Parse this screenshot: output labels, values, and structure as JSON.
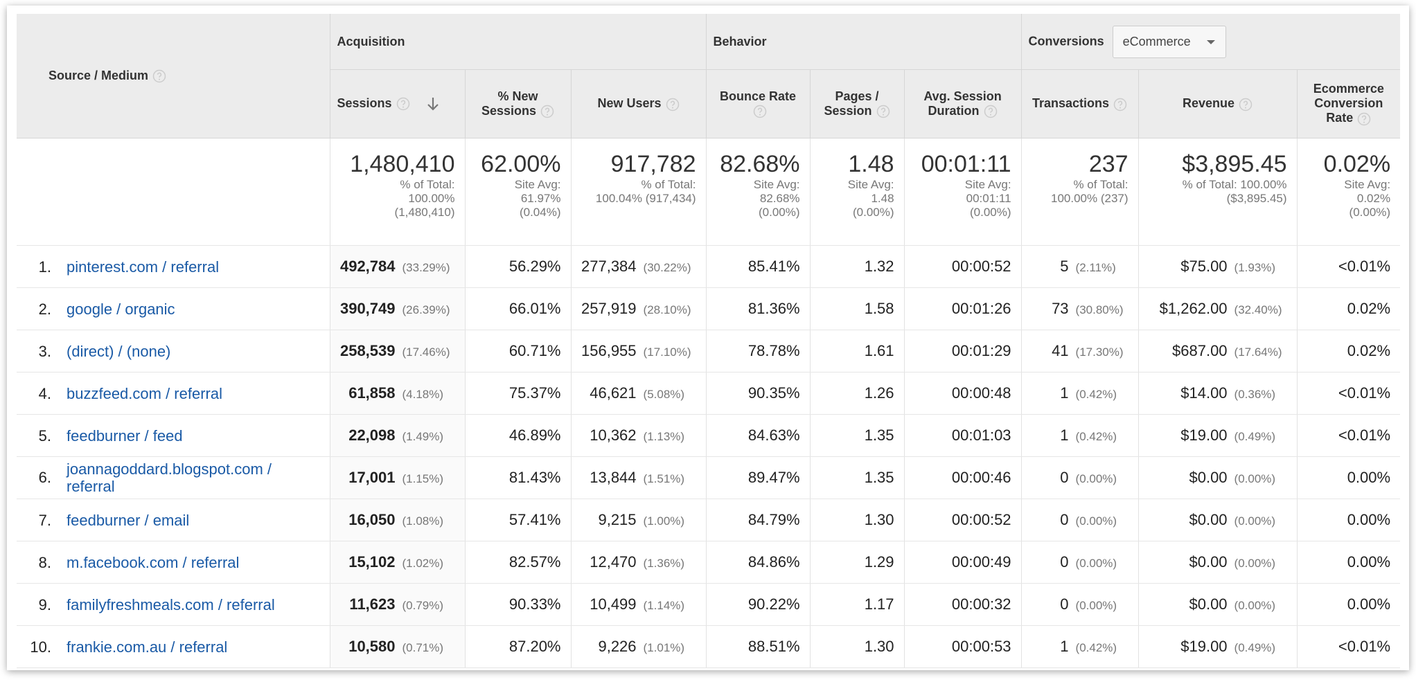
{
  "header": {
    "source_medium": "Source / Medium",
    "acquisition": "Acquisition",
    "behavior": "Behavior",
    "conversions": "Conversions",
    "conversion_select": "eCommerce"
  },
  "columns": [
    "Sessions",
    "% New Sessions",
    "New Users",
    "Bounce Rate",
    "Pages / Session",
    "Avg. Session Duration",
    "Transactions",
    "Revenue",
    "Ecommerce Conversion Rate"
  ],
  "totals": [
    {
      "value": "1,480,410",
      "note": [
        "% of Total:",
        "100.00%",
        "(1,480,410)"
      ]
    },
    {
      "value": "62.00%",
      "note": [
        "Site Avg:",
        "61.97%",
        "(0.04%)"
      ]
    },
    {
      "value": "917,782",
      "note": [
        "% of Total:",
        "100.04% (917,434)"
      ]
    },
    {
      "value": "82.68%",
      "note": [
        "Site Avg:",
        "82.68%",
        "(0.00%)"
      ]
    },
    {
      "value": "1.48",
      "note": [
        "Site Avg:",
        "1.48",
        "(0.00%)"
      ]
    },
    {
      "value": "00:01:11",
      "note": [
        "Site Avg:",
        "00:01:11",
        "(0.00%)"
      ]
    },
    {
      "value": "237",
      "note": [
        "% of Total:",
        "100.00% (237)"
      ]
    },
    {
      "value": "$3,895.45",
      "note": [
        "% of Total: 100.00%",
        "($3,895.45)"
      ]
    },
    {
      "value": "0.02%",
      "note": [
        "Site Avg:",
        "0.02%",
        "(0.00%)"
      ]
    }
  ],
  "rows": [
    {
      "rank": "1.",
      "source": "pinterest.com / referral",
      "cells": [
        {
          "value": "492,784",
          "share": "(33.29%)"
        },
        {
          "value": "56.29%"
        },
        {
          "value": "277,384",
          "share": "(30.22%)"
        },
        {
          "value": "85.41%"
        },
        {
          "value": "1.32"
        },
        {
          "value": "00:00:52"
        },
        {
          "value": "5",
          "share": "(2.11%)"
        },
        {
          "value": "$75.00",
          "share": "(1.93%)"
        },
        {
          "value": "<0.01%"
        }
      ]
    },
    {
      "rank": "2.",
      "source": "google / organic",
      "cells": [
        {
          "value": "390,749",
          "share": "(26.39%)"
        },
        {
          "value": "66.01%"
        },
        {
          "value": "257,919",
          "share": "(28.10%)"
        },
        {
          "value": "81.36%"
        },
        {
          "value": "1.58"
        },
        {
          "value": "00:01:26"
        },
        {
          "value": "73",
          "share": "(30.80%)"
        },
        {
          "value": "$1,262.00",
          "share": "(32.40%)"
        },
        {
          "value": "0.02%"
        }
      ]
    },
    {
      "rank": "3.",
      "source": "(direct) / (none)",
      "cells": [
        {
          "value": "258,539",
          "share": "(17.46%)"
        },
        {
          "value": "60.71%"
        },
        {
          "value": "156,955",
          "share": "(17.10%)"
        },
        {
          "value": "78.78%"
        },
        {
          "value": "1.61"
        },
        {
          "value": "00:01:29"
        },
        {
          "value": "41",
          "share": "(17.30%)"
        },
        {
          "value": "$687.00",
          "share": "(17.64%)"
        },
        {
          "value": "0.02%"
        }
      ]
    },
    {
      "rank": "4.",
      "source": "buzzfeed.com / referral",
      "cells": [
        {
          "value": "61,858",
          "share": "(4.18%)"
        },
        {
          "value": "75.37%"
        },
        {
          "value": "46,621",
          "share": "(5.08%)"
        },
        {
          "value": "90.35%"
        },
        {
          "value": "1.26"
        },
        {
          "value": "00:00:48"
        },
        {
          "value": "1",
          "share": "(0.42%)"
        },
        {
          "value": "$14.00",
          "share": "(0.36%)"
        },
        {
          "value": "<0.01%"
        }
      ]
    },
    {
      "rank": "5.",
      "source": "feedburner / feed",
      "cells": [
        {
          "value": "22,098",
          "share": "(1.49%)"
        },
        {
          "value": "46.89%"
        },
        {
          "value": "10,362",
          "share": "(1.13%)"
        },
        {
          "value": "84.63%"
        },
        {
          "value": "1.35"
        },
        {
          "value": "00:01:03"
        },
        {
          "value": "1",
          "share": "(0.42%)"
        },
        {
          "value": "$19.00",
          "share": "(0.49%)"
        },
        {
          "value": "<0.01%"
        }
      ]
    },
    {
      "rank": "6.",
      "source": "joannagoddard.blogspot.com / referral",
      "cells": [
        {
          "value": "17,001",
          "share": "(1.15%)"
        },
        {
          "value": "81.43%"
        },
        {
          "value": "13,844",
          "share": "(1.51%)"
        },
        {
          "value": "89.47%"
        },
        {
          "value": "1.35"
        },
        {
          "value": "00:00:46"
        },
        {
          "value": "0",
          "share": "(0.00%)"
        },
        {
          "value": "$0.00",
          "share": "(0.00%)"
        },
        {
          "value": "0.00%"
        }
      ]
    },
    {
      "rank": "7.",
      "source": "feedburner / email",
      "cells": [
        {
          "value": "16,050",
          "share": "(1.08%)"
        },
        {
          "value": "57.41%"
        },
        {
          "value": "9,215",
          "share": "(1.00%)"
        },
        {
          "value": "84.79%"
        },
        {
          "value": "1.30"
        },
        {
          "value": "00:00:52"
        },
        {
          "value": "0",
          "share": "(0.00%)"
        },
        {
          "value": "$0.00",
          "share": "(0.00%)"
        },
        {
          "value": "0.00%"
        }
      ]
    },
    {
      "rank": "8.",
      "source": "m.facebook.com / referral",
      "cells": [
        {
          "value": "15,102",
          "share": "(1.02%)"
        },
        {
          "value": "82.57%"
        },
        {
          "value": "12,470",
          "share": "(1.36%)"
        },
        {
          "value": "84.86%"
        },
        {
          "value": "1.29"
        },
        {
          "value": "00:00:49"
        },
        {
          "value": "0",
          "share": "(0.00%)"
        },
        {
          "value": "$0.00",
          "share": "(0.00%)"
        },
        {
          "value": "0.00%"
        }
      ]
    },
    {
      "rank": "9.",
      "source": "familyfreshmeals.com / referral",
      "cells": [
        {
          "value": "11,623",
          "share": "(0.79%)"
        },
        {
          "value": "90.33%"
        },
        {
          "value": "10,499",
          "share": "(1.14%)"
        },
        {
          "value": "90.22%"
        },
        {
          "value": "1.17"
        },
        {
          "value": "00:00:32"
        },
        {
          "value": "0",
          "share": "(0.00%)"
        },
        {
          "value": "$0.00",
          "share": "(0.00%)"
        },
        {
          "value": "0.00%"
        }
      ]
    },
    {
      "rank": "10.",
      "source": "frankie.com.au / referral",
      "cells": [
        {
          "value": "10,580",
          "share": "(0.71%)"
        },
        {
          "value": "87.20%"
        },
        {
          "value": "9,226",
          "share": "(1.01%)"
        },
        {
          "value": "88.51%"
        },
        {
          "value": "1.30"
        },
        {
          "value": "00:00:53"
        },
        {
          "value": "1",
          "share": "(0.42%)"
        },
        {
          "value": "$19.00",
          "share": "(0.49%)"
        },
        {
          "value": "<0.01%"
        }
      ]
    }
  ]
}
